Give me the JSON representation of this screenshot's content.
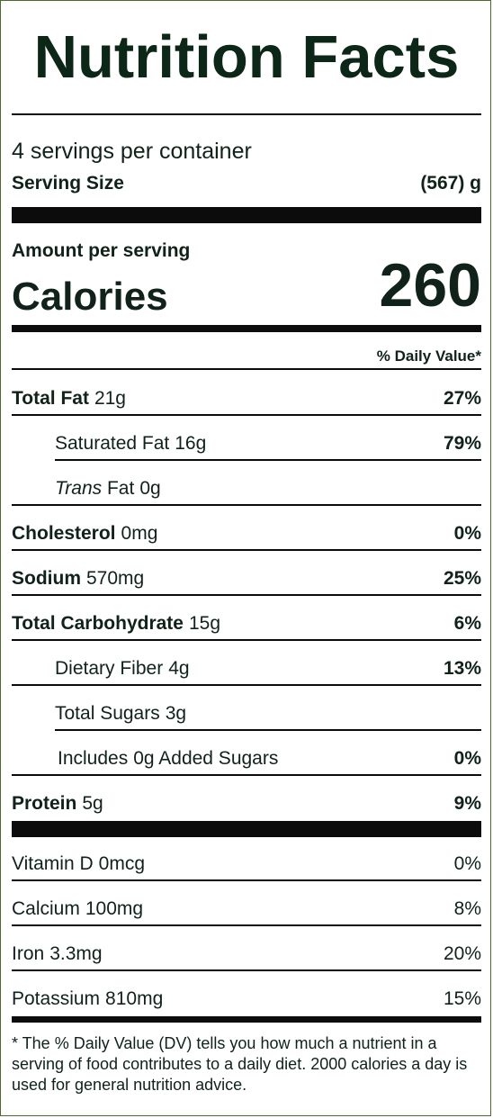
{
  "title": "Nutrition Facts",
  "servings_per_container": "4 servings per container",
  "serving_size": {
    "label": "Serving Size",
    "value": "(567) g"
  },
  "amount_per_serving": "Amount per serving",
  "calories": {
    "label": "Calories",
    "value": "260"
  },
  "daily_value_header": "% Daily Value*",
  "nutrients": [
    {
      "name": "Total Fat",
      "amount": "21g",
      "dv": "27%"
    },
    {
      "name": "Saturated Fat",
      "amount": "16g",
      "dv": "79%"
    },
    {
      "name_italic": "Trans",
      "name": "Fat",
      "amount": "0g",
      "dv": ""
    },
    {
      "name": "Cholesterol",
      "amount": "0mg",
      "dv": "0%"
    },
    {
      "name": "Sodium",
      "amount": "570mg",
      "dv": "25%"
    },
    {
      "name": "Total Carbohydrate",
      "amount": "15g",
      "dv": "6%"
    },
    {
      "name": "Dietary Fiber",
      "amount": "4g",
      "dv": "13%"
    },
    {
      "name": "Total Sugars",
      "amount": "3g",
      "dv": ""
    },
    {
      "name": "Includes",
      "amount": "0g Added Sugars",
      "dv": "0%"
    },
    {
      "name": "Protein",
      "amount": "5g",
      "dv": "9%"
    }
  ],
  "vitamins": [
    {
      "name": "Vitamin D",
      "amount": "0mcg",
      "dv": "0%"
    },
    {
      "name": "Calcium",
      "amount": "100mg",
      "dv": "8%"
    },
    {
      "name": "Iron",
      "amount": "3.3mg",
      "dv": "20%"
    },
    {
      "name": "Potassium",
      "amount": "810mg",
      "dv": "15%"
    }
  ],
  "footnote": "* The % Daily Value (DV) tells you how much a nutrient in a serving of food contributes to a daily diet. 2000 calories a day is used for general nutrition advice.",
  "colors": {
    "border": "#4d6b2c",
    "text": "#0c2617",
    "rule": "#0c0c0c"
  }
}
